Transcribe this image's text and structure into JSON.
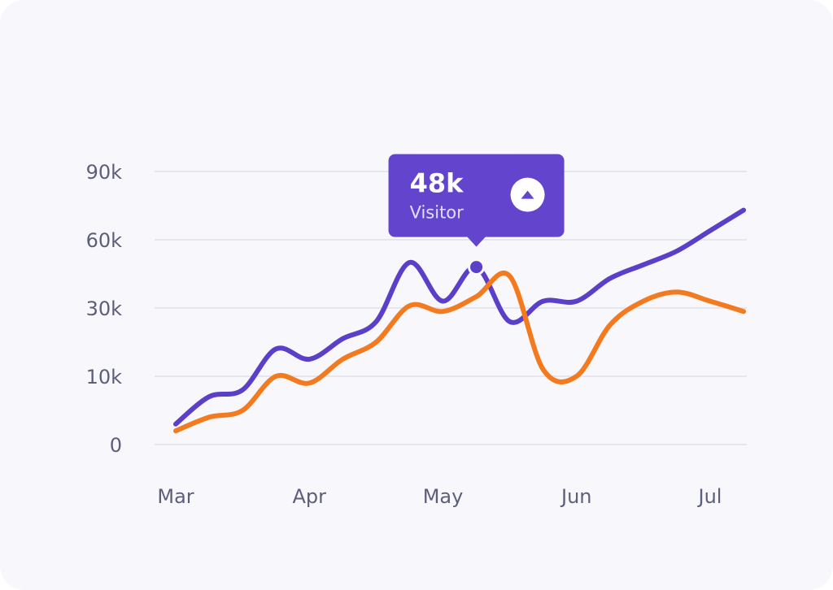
{
  "chart_data": {
    "type": "line",
    "categories": [
      "Mar",
      null,
      null,
      null,
      "Apr",
      null,
      null,
      null,
      "May",
      null,
      null,
      null,
      "Jun",
      null,
      null,
      null,
      "Jul",
      null
    ],
    "series": [
      {
        "color": "#5b3fc8",
        "values": [
          3000,
          7000,
          8000,
          18000,
          15000,
          21000,
          26000,
          50000,
          33000,
          48000,
          26000,
          33000,
          33000,
          43000,
          49000,
          55000,
          64000,
          73000
        ]
      },
      {
        "color": "#f47a1f",
        "values": [
          2000,
          4000,
          5000,
          10000,
          9000,
          15000,
          20000,
          31000,
          29000,
          35000,
          44000,
          12000,
          10000,
          25000,
          33000,
          37000,
          33000,
          29000
        ]
      }
    ],
    "ylim": [
      0,
      90000
    ],
    "yticks": [
      0,
      {
        "value": 10000,
        "label": "10k"
      },
      {
        "value": 30000,
        "label": "30k"
      },
      {
        "value": 60000,
        "label": "60k"
      },
      {
        "value": 90000,
        "label": "90k"
      }
    ],
    "grid": true,
    "tooltip": {
      "series": 0,
      "index": 9,
      "value_label": "48k",
      "label": "Visitor"
    }
  }
}
